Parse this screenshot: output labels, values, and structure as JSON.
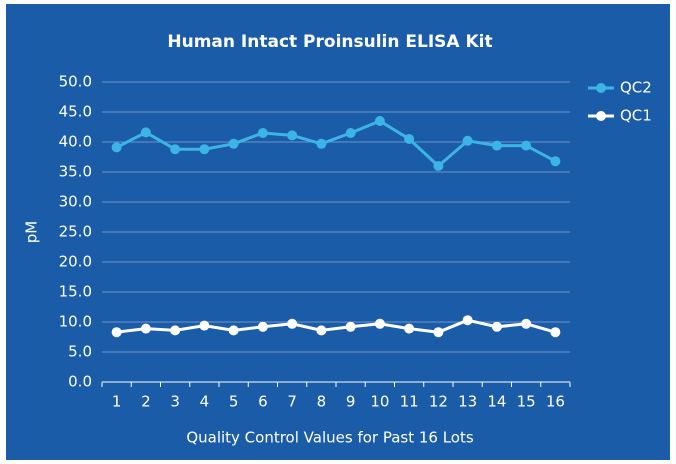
{
  "chart_data": {
    "type": "line",
    "title": "Human Intact Proinsulin ELISA Kit",
    "x_label": "Quality Control Values for Past 16 Lots",
    "y_label": "pM",
    "categories": [
      "1",
      "2",
      "3",
      "4",
      "5",
      "6",
      "7",
      "8",
      "9",
      "10",
      "11",
      "12",
      "13",
      "14",
      "15",
      "16"
    ],
    "series": [
      {
        "name": "QC2",
        "color": "#3cb4e6",
        "values": [
          39.1,
          41.6,
          38.8,
          38.8,
          39.7,
          41.5,
          41.1,
          39.7,
          41.5,
          43.5,
          40.5,
          36.0,
          40.2,
          39.4,
          39.4,
          36.8
        ]
      },
      {
        "name": "QC1",
        "color": "#ffffff",
        "values": [
          8.3,
          8.9,
          8.6,
          9.4,
          8.6,
          9.2,
          9.7,
          8.6,
          9.2,
          9.7,
          8.9,
          8.3,
          10.3,
          9.2,
          9.7,
          8.3
        ]
      }
    ],
    "ylim": [
      0,
      50
    ],
    "yticks": [
      {
        "value": 0,
        "label": "0.0"
      },
      {
        "value": 5,
        "label": "5.0"
      },
      {
        "value": 10,
        "label": "10.0"
      },
      {
        "value": 15,
        "label": "15.0"
      },
      {
        "value": 20,
        "label": "20.0"
      },
      {
        "value": 25,
        "label": "25.0"
      },
      {
        "value": 30,
        "label": "30.0"
      },
      {
        "value": 35,
        "label": "35.0"
      },
      {
        "value": 40,
        "label": "40.0"
      },
      {
        "value": 45,
        "label": "45.0"
      },
      {
        "value": 50,
        "label": "50.0"
      }
    ],
    "grid": true,
    "legend": "right"
  }
}
